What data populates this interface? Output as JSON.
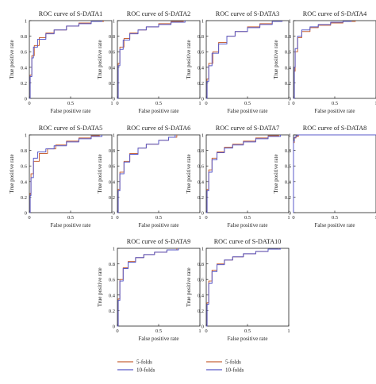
{
  "colors": {
    "five_folds": "#c8663a",
    "ten_folds": "#5a5ac8",
    "axis": "#222222"
  },
  "legend": {
    "items": [
      "5-folds",
      "10-folds"
    ]
  },
  "chart_data": [
    {
      "type": "line",
      "title": "ROC curve of S-DATA1",
      "xlabel": "False positive rate",
      "ylabel": "True positive rate",
      "xlim": [
        0,
        1
      ],
      "ylim": [
        0,
        1
      ],
      "x_ticks": [
        "0",
        "0.5",
        "1"
      ],
      "y_ticks": [
        "0",
        "0.2",
        "0.4",
        "0.6",
        "0.8",
        "1"
      ],
      "series": [
        {
          "name": "5-folds",
          "points": [
            [
              0,
              0
            ],
            [
              0.01,
              0.3
            ],
            [
              0.03,
              0.55
            ],
            [
              0.06,
              0.68
            ],
            [
              0.12,
              0.78
            ],
            [
              0.2,
              0.84
            ],
            [
              0.3,
              0.88
            ],
            [
              0.45,
              0.93
            ],
            [
              0.6,
              0.97
            ],
            [
              0.75,
              0.99
            ],
            [
              0.9,
              1.0
            ]
          ]
        },
        {
          "name": "10-folds",
          "points": [
            [
              0,
              0
            ],
            [
              0.01,
              0.28
            ],
            [
              0.03,
              0.52
            ],
            [
              0.05,
              0.66
            ],
            [
              0.1,
              0.76
            ],
            [
              0.2,
              0.83
            ],
            [
              0.3,
              0.88
            ],
            [
              0.45,
              0.93
            ],
            [
              0.6,
              0.96
            ],
            [
              0.75,
              0.99
            ],
            [
              0.88,
              1.0
            ]
          ]
        }
      ]
    },
    {
      "type": "line",
      "title": "ROC curve of S-DATA2",
      "xlabel": "False positive rate",
      "ylabel": "True positive rate",
      "xlim": [
        0,
        1
      ],
      "ylim": [
        0,
        1
      ],
      "x_ticks": [
        "0",
        "0.5",
        "1"
      ],
      "y_ticks": [
        "0",
        "0.2",
        "0.4",
        "0.6",
        "0.8",
        "1"
      ],
      "series": [
        {
          "name": "5-folds",
          "points": [
            [
              0,
              0
            ],
            [
              0.01,
              0.45
            ],
            [
              0.03,
              0.66
            ],
            [
              0.08,
              0.77
            ],
            [
              0.15,
              0.84
            ],
            [
              0.25,
              0.88
            ],
            [
              0.35,
              0.92
            ],
            [
              0.5,
              0.96
            ],
            [
              0.65,
              0.99
            ],
            [
              0.8,
              1.0
            ]
          ]
        },
        {
          "name": "10-folds",
          "points": [
            [
              0,
              0
            ],
            [
              0.01,
              0.42
            ],
            [
              0.03,
              0.63
            ],
            [
              0.07,
              0.75
            ],
            [
              0.15,
              0.83
            ],
            [
              0.25,
              0.88
            ],
            [
              0.35,
              0.92
            ],
            [
              0.5,
              0.95
            ],
            [
              0.65,
              0.98
            ],
            [
              0.82,
              1.0
            ]
          ]
        }
      ]
    },
    {
      "type": "line",
      "title": "ROC curve of S-DATA3",
      "xlabel": "False positive rate",
      "ylabel": "True positive rate",
      "xlim": [
        0,
        1
      ],
      "ylim": [
        0,
        1
      ],
      "x_ticks": [
        "0",
        "0.5",
        "1"
      ],
      "y_ticks": [
        "0",
        "0.2",
        "0.4",
        "0.6",
        "0.8",
        "1"
      ],
      "series": [
        {
          "name": "5-folds",
          "points": [
            [
              0,
              0
            ],
            [
              0.01,
              0.25
            ],
            [
              0.03,
              0.45
            ],
            [
              0.08,
              0.6
            ],
            [
              0.15,
              0.72
            ],
            [
              0.25,
              0.8
            ],
            [
              0.35,
              0.86
            ],
            [
              0.5,
              0.92
            ],
            [
              0.65,
              0.96
            ],
            [
              0.8,
              0.99
            ],
            [
              0.92,
              1.0
            ]
          ]
        },
        {
          "name": "10-folds",
          "points": [
            [
              0,
              0
            ],
            [
              0.01,
              0.22
            ],
            [
              0.03,
              0.42
            ],
            [
              0.07,
              0.58
            ],
            [
              0.15,
              0.7
            ],
            [
              0.25,
              0.8
            ],
            [
              0.35,
              0.86
            ],
            [
              0.5,
              0.91
            ],
            [
              0.65,
              0.95
            ],
            [
              0.8,
              0.99
            ],
            [
              0.92,
              1.0
            ]
          ]
        }
      ]
    },
    {
      "type": "line",
      "title": "ROC curve of S-DATA4",
      "xlabel": "False positive rate",
      "ylabel": "True positive rate",
      "xlim": [
        0,
        1
      ],
      "ylim": [
        0,
        1
      ],
      "x_ticks": [
        "0",
        "0.5",
        "1"
      ],
      "y_ticks": [
        "0",
        "0.2",
        "0.4",
        "0.6",
        "0.8",
        "1"
      ],
      "series": [
        {
          "name": "5-folds",
          "points": [
            [
              0,
              0
            ],
            [
              0.01,
              0.35
            ],
            [
              0.02,
              0.6
            ],
            [
              0.05,
              0.78
            ],
            [
              0.1,
              0.86
            ],
            [
              0.2,
              0.91
            ],
            [
              0.3,
              0.94
            ],
            [
              0.45,
              0.97
            ],
            [
              0.6,
              0.99
            ],
            [
              0.75,
              1.0
            ]
          ]
        },
        {
          "name": "10-folds",
          "points": [
            [
              0,
              0
            ],
            [
              0.01,
              0.4
            ],
            [
              0.02,
              0.64
            ],
            [
              0.05,
              0.8
            ],
            [
              0.1,
              0.88
            ],
            [
              0.2,
              0.92
            ],
            [
              0.3,
              0.95
            ],
            [
              0.45,
              0.98
            ],
            [
              0.6,
              0.99
            ],
            [
              0.7,
              1.0
            ]
          ]
        }
      ]
    },
    {
      "type": "line",
      "title": "ROC curve of S-DATA5",
      "xlabel": "False positive rate",
      "ylabel": "True positive rate",
      "xlim": [
        0,
        1
      ],
      "ylim": [
        0,
        1
      ],
      "x_ticks": [
        "0",
        "0.5",
        "1"
      ],
      "y_ticks": [
        "0",
        "0.2",
        "0.4",
        "0.6",
        "0.8",
        "1"
      ],
      "series": [
        {
          "name": "5-folds",
          "points": [
            [
              0,
              0
            ],
            [
              0.01,
              0.25
            ],
            [
              0.02,
              0.5
            ],
            [
              0.05,
              0.66
            ],
            [
              0.12,
              0.76
            ],
            [
              0.22,
              0.82
            ],
            [
              0.32,
              0.87
            ],
            [
              0.45,
              0.92
            ],
            [
              0.6,
              0.96
            ],
            [
              0.75,
              0.99
            ],
            [
              0.85,
              1.0
            ]
          ]
        },
        {
          "name": "10-folds",
          "points": [
            [
              0,
              0
            ],
            [
              0.01,
              0.22
            ],
            [
              0.02,
              0.45
            ],
            [
              0.05,
              0.7
            ],
            [
              0.1,
              0.78
            ],
            [
              0.2,
              0.82
            ],
            [
              0.3,
              0.86
            ],
            [
              0.45,
              0.91
            ],
            [
              0.6,
              0.95
            ],
            [
              0.75,
              0.98
            ],
            [
              0.88,
              1.0
            ]
          ]
        }
      ]
    },
    {
      "type": "line",
      "title": "ROC curve of S-DATA6",
      "xlabel": "False positive rate",
      "ylabel": "True positive rate",
      "xlim": [
        0,
        1
      ],
      "ylim": [
        0,
        1
      ],
      "x_ticks": [
        "0",
        "0.5",
        "1"
      ],
      "y_ticks": [
        "0",
        "0.2",
        "0.4",
        "0.6",
        "0.8",
        "1"
      ],
      "series": [
        {
          "name": "5-folds",
          "points": [
            [
              0,
              0
            ],
            [
              0.01,
              0.3
            ],
            [
              0.03,
              0.52
            ],
            [
              0.08,
              0.66
            ],
            [
              0.15,
              0.76
            ],
            [
              0.25,
              0.83
            ],
            [
              0.35,
              0.88
            ],
            [
              0.5,
              0.93
            ],
            [
              0.62,
              0.97
            ],
            [
              0.72,
              1.0
            ]
          ]
        },
        {
          "name": "10-folds",
          "points": [
            [
              0,
              0
            ],
            [
              0.01,
              0.28
            ],
            [
              0.03,
              0.5
            ],
            [
              0.08,
              0.65
            ],
            [
              0.15,
              0.75
            ],
            [
              0.25,
              0.83
            ],
            [
              0.35,
              0.88
            ],
            [
              0.5,
              0.93
            ],
            [
              0.62,
              0.97
            ],
            [
              0.7,
              1.0
            ]
          ]
        }
      ]
    },
    {
      "type": "line",
      "title": "ROC curve of S-DATA7",
      "xlabel": "False positive rate",
      "ylabel": "True positive rate",
      "xlim": [
        0,
        1
      ],
      "ylim": [
        0,
        1
      ],
      "x_ticks": [
        "0",
        "0.5",
        "1"
      ],
      "y_ticks": [
        "0",
        "0.2",
        "0.4",
        "0.6",
        "0.8",
        "1"
      ],
      "series": [
        {
          "name": "5-folds",
          "points": [
            [
              0,
              0
            ],
            [
              0.01,
              0.3
            ],
            [
              0.03,
              0.55
            ],
            [
              0.07,
              0.7
            ],
            [
              0.13,
              0.78
            ],
            [
              0.22,
              0.84
            ],
            [
              0.32,
              0.88
            ],
            [
              0.45,
              0.92
            ],
            [
              0.6,
              0.96
            ],
            [
              0.75,
              0.99
            ],
            [
              0.88,
              1.0
            ]
          ]
        },
        {
          "name": "10-folds",
          "points": [
            [
              0,
              0
            ],
            [
              0.01,
              0.28
            ],
            [
              0.03,
              0.52
            ],
            [
              0.07,
              0.68
            ],
            [
              0.13,
              0.77
            ],
            [
              0.22,
              0.83
            ],
            [
              0.32,
              0.87
            ],
            [
              0.45,
              0.91
            ],
            [
              0.6,
              0.95
            ],
            [
              0.75,
              0.98
            ],
            [
              0.9,
              1.0
            ]
          ]
        }
      ]
    },
    {
      "type": "line",
      "title": "ROC curve of S-DATA8",
      "xlabel": "False positive rate",
      "ylabel": "True positive rate",
      "xlim": [
        0,
        1
      ],
      "ylim": [
        0,
        1
      ],
      "x_ticks": [
        "0",
        "0.5",
        "1"
      ],
      "y_ticks": [
        "0",
        "0.2",
        "0.4",
        "0.6",
        "0.8",
        "1"
      ],
      "series": [
        {
          "name": "5-folds",
          "points": [
            [
              0,
              0
            ],
            [
              0.0,
              0.9
            ],
            [
              0.01,
              0.96
            ],
            [
              0.03,
              0.98
            ],
            [
              0.06,
              1.0
            ],
            [
              1,
              1.0
            ]
          ]
        },
        {
          "name": "10-folds",
          "points": [
            [
              0,
              0
            ],
            [
              0.0,
              0.92
            ],
            [
              0.01,
              0.97
            ],
            [
              0.03,
              0.99
            ],
            [
              0.05,
              1.0
            ],
            [
              1,
              1.0
            ]
          ]
        }
      ]
    },
    {
      "type": "line",
      "title": "ROC curve of S-DATA9",
      "xlabel": "False positive rate",
      "ylabel": "True positive rate",
      "xlim": [
        0,
        1
      ],
      "ylim": [
        0,
        1
      ],
      "x_ticks": [
        "0",
        "0.5",
        "1"
      ],
      "y_ticks": [
        "0",
        "0.2",
        "0.4",
        "0.6",
        "0.8",
        "1"
      ],
      "series": [
        {
          "name": "5-folds",
          "points": [
            [
              0,
              0
            ],
            [
              0.01,
              0.35
            ],
            [
              0.03,
              0.6
            ],
            [
              0.07,
              0.75
            ],
            [
              0.13,
              0.83
            ],
            [
              0.22,
              0.88
            ],
            [
              0.32,
              0.92
            ],
            [
              0.45,
              0.95
            ],
            [
              0.6,
              0.98
            ],
            [
              0.72,
              1.0
            ]
          ]
        },
        {
          "name": "10-folds",
          "points": [
            [
              0,
              0
            ],
            [
              0.01,
              0.33
            ],
            [
              0.03,
              0.58
            ],
            [
              0.07,
              0.74
            ],
            [
              0.13,
              0.82
            ],
            [
              0.22,
              0.88
            ],
            [
              0.32,
              0.92
            ],
            [
              0.45,
              0.95
            ],
            [
              0.6,
              0.98
            ],
            [
              0.74,
              1.0
            ]
          ]
        }
      ]
    },
    {
      "type": "line",
      "title": "ROC curve of S-DATA10",
      "xlabel": "False positive rate",
      "ylabel": "True positive rate",
      "xlim": [
        0,
        1
      ],
      "ylim": [
        0,
        1
      ],
      "x_ticks": [
        "0",
        "0.5",
        "1"
      ],
      "y_ticks": [
        "0",
        "0.2",
        "0.4",
        "0.6",
        "0.8",
        "1"
      ],
      "series": [
        {
          "name": "5-folds",
          "points": [
            [
              0,
              0
            ],
            [
              0.01,
              0.3
            ],
            [
              0.03,
              0.58
            ],
            [
              0.07,
              0.72
            ],
            [
              0.13,
              0.8
            ],
            [
              0.22,
              0.85
            ],
            [
              0.32,
              0.89
            ],
            [
              0.45,
              0.93
            ],
            [
              0.6,
              0.96
            ],
            [
              0.75,
              0.99
            ],
            [
              0.88,
              1.0
            ]
          ]
        },
        {
          "name": "10-folds",
          "points": [
            [
              0,
              0
            ],
            [
              0.01,
              0.28
            ],
            [
              0.03,
              0.55
            ],
            [
              0.07,
              0.7
            ],
            [
              0.13,
              0.79
            ],
            [
              0.22,
              0.85
            ],
            [
              0.32,
              0.89
            ],
            [
              0.45,
              0.93
            ],
            [
              0.6,
              0.96
            ],
            [
              0.75,
              0.99
            ],
            [
              0.9,
              1.0
            ]
          ]
        }
      ]
    }
  ]
}
